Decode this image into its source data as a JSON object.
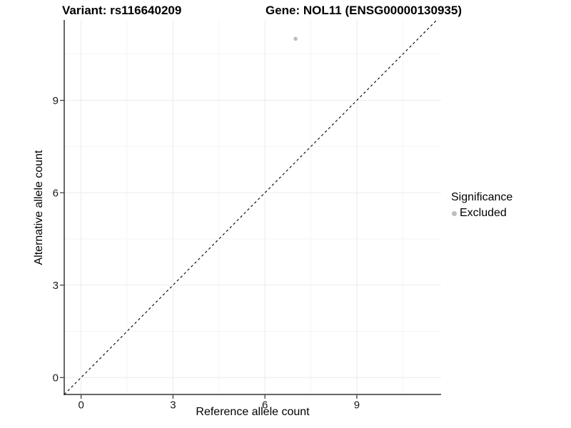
{
  "chart_data": {
    "type": "scatter",
    "titles": {
      "left": "Variant: rs116640209",
      "right": "Gene: NOL11 (ENSG00000130935)"
    },
    "xlabel": "Reference allele count",
    "ylabel": "Alternative allele count",
    "xlim": [
      -0.55,
      11.75
    ],
    "ylim": [
      -0.55,
      11.61
    ],
    "x_ticks": [
      0,
      3,
      6,
      9
    ],
    "y_ticks": [
      0,
      3,
      6,
      9
    ],
    "minor_ticks": [
      1.5,
      4.5,
      7.5,
      10.5
    ],
    "grid": "major-and-minor",
    "identity_line": {
      "equation": "y = x",
      "style": "dashed",
      "color": "#000000"
    },
    "points": [
      {
        "x": 7,
        "y": 11,
        "series": "Excluded"
      }
    ],
    "point_radius": 2.8,
    "legend": {
      "title": "Significance",
      "position": "right",
      "items": [
        {
          "label": "Excluded",
          "color": "#bdbdbd"
        }
      ]
    },
    "colors": {
      "background": "#ffffff",
      "axis_line": "#333333",
      "tick_mark": "#333333",
      "tick_label": "#1a1a1a",
      "grid_major": "#ebebeb",
      "grid_minor": "#f5f5f5"
    }
  }
}
